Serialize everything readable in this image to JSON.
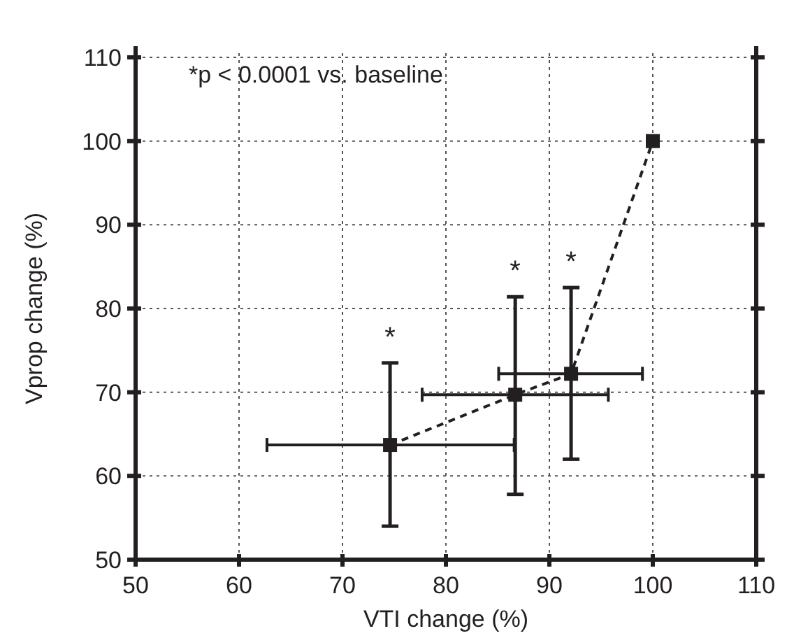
{
  "chart_data": {
    "type": "line",
    "xlabel": "VTI change (%)",
    "ylabel": "Vprop change (%)",
    "xlim": [
      50,
      110
    ],
    "xticks": [
      50,
      60,
      70,
      80,
      90,
      100,
      110
    ],
    "ylim": [
      50,
      110
    ],
    "yticks": [
      50,
      60,
      70,
      80,
      90,
      100,
      110
    ],
    "grid": true,
    "marker": "square",
    "line_style": "dashed",
    "series": [
      {
        "color": "#231f20",
        "x": [
          74.6,
          86.7,
          92.1,
          100
        ],
        "values": [
          63.7,
          69.7,
          72.2,
          100
        ],
        "errors": [
          [
            54.0,
            73.5
          ],
          [
            57.8,
            81.4
          ],
          [
            62.0,
            82.5
          ],
          null
        ],
        "xerrors": [
          [
            62.7,
            86.6
          ],
          [
            77.7,
            95.7
          ],
          [
            85.1,
            99.0
          ],
          null
        ]
      }
    ],
    "annotations": [
      "*p < 0.0001 vs. baseline",
      "*",
      "*",
      "*"
    ]
  }
}
